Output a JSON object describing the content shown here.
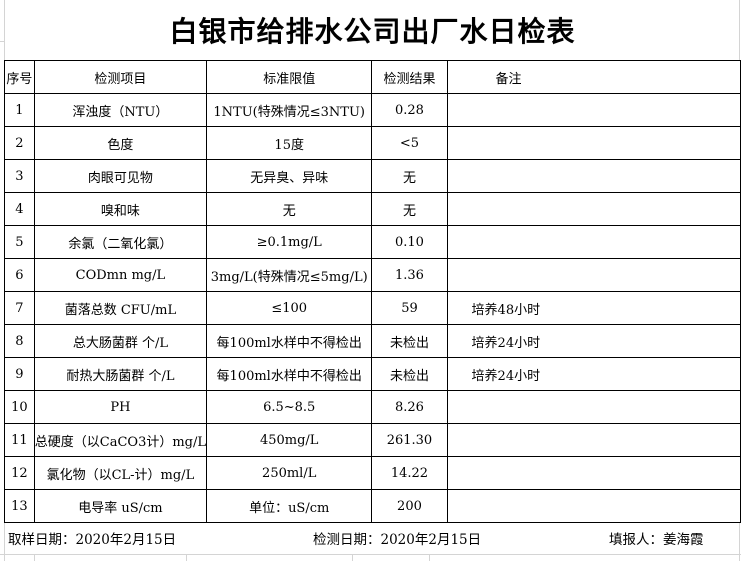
{
  "title": "白银市给排水公司出厂水日检表",
  "headers": [
    "序号",
    "检测项目",
    "标准限值",
    "检测结果",
    "备注"
  ],
  "rows": [
    [
      "1",
      "浑浊度（NTU）",
      "1NTU(特殊情况≤3NTU)",
      "0.28",
      ""
    ],
    [
      "2",
      "色度",
      "15度",
      "<5",
      ""
    ],
    [
      "3",
      "肉眼可见物",
      "无异臭、异味",
      "无",
      ""
    ],
    [
      "4",
      "嗅和味",
      "无",
      "无",
      ""
    ],
    [
      "5",
      "余氯（二氧化氯）",
      "≥0.1mg/L",
      "0.10",
      ""
    ],
    [
      "6",
      "CODmn mg/L",
      "3mg/L(特殊情况≤5mg/L)",
      "1.36",
      ""
    ],
    [
      "7",
      "菌落总数  CFU/mL",
      "≤100",
      "59",
      "培养48小时"
    ],
    [
      "8",
      "总大肠菌群 个/L",
      "每100ml水样中不得检出",
      "未检出",
      "培养24小时"
    ],
    [
      "9",
      "耐热大肠菌群 个/L",
      "每100ml水样中不得检出",
      "未检出",
      "培养24小时"
    ],
    [
      "10",
      "PH",
      "6.5~8.5",
      "8.26",
      ""
    ],
    [
      "11",
      "总硬度（以CaCO3计）mg/L",
      "450mg/L",
      "261.30",
      ""
    ],
    [
      "12",
      "氯化物（以CL-计）mg/L",
      "250ml/L",
      "14.22",
      ""
    ],
    [
      "13",
      "电导率 uS/cm",
      "单位：uS/cm",
      "200",
      ""
    ]
  ],
  "footer": {
    "sampling_date": "取样日期：2020年2月15日",
    "test_date": "检测日期：2020年2月15日",
    "reporter": "填报人：姜海霞"
  }
}
